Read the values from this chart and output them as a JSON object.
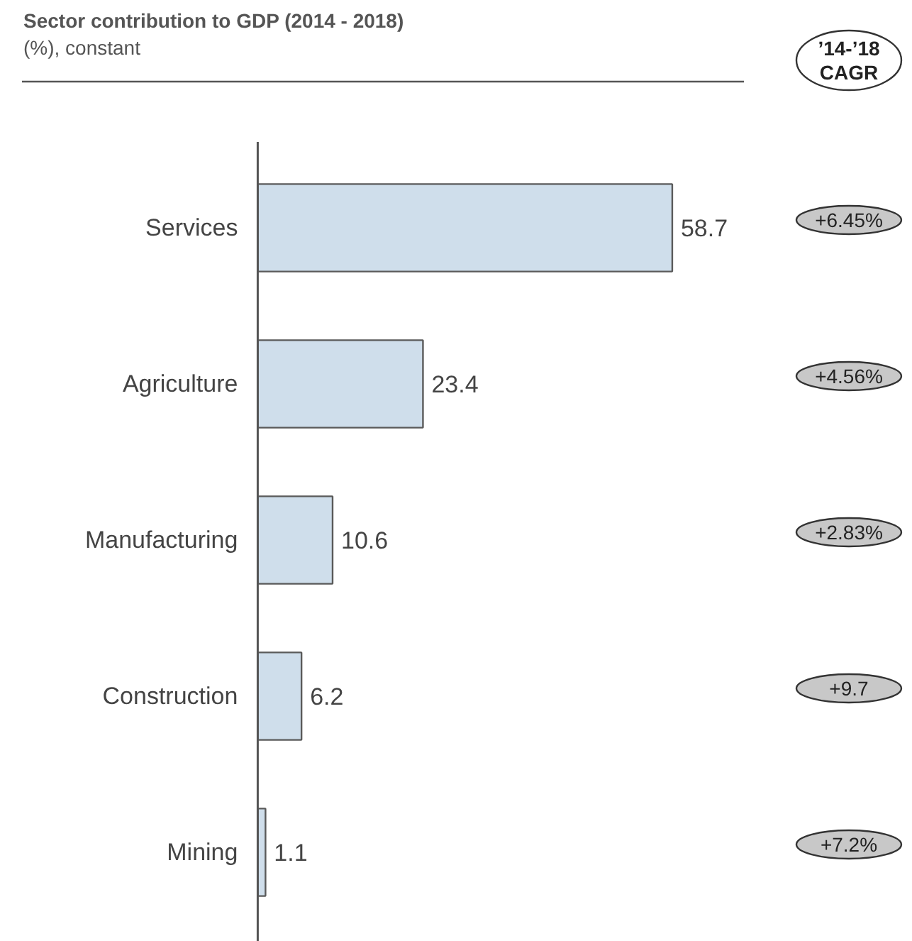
{
  "chart_data": {
    "type": "bar",
    "orientation": "horizontal",
    "title": "Sector contribution to GDP (2014 - 2018)",
    "subtitle": "(%), constant",
    "categories": [
      "Services",
      "Agriculture",
      "Manufacturing",
      "Construction",
      "Mining"
    ],
    "values": [
      58.7,
      23.4,
      10.6,
      6.2,
      1.1
    ],
    "color": "#cfdeeb",
    "data_labels": true,
    "grid": false,
    "annotations": [
      "’14-’18 CAGR",
      "+6.45%",
      "+4.56%",
      "+2.83%",
      "+9.7",
      "+7.2%"
    ]
  }
}
